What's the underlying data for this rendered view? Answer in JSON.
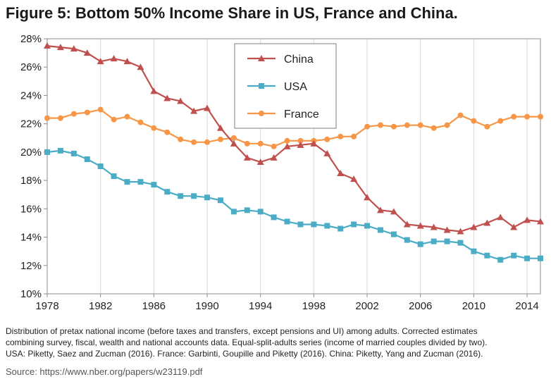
{
  "title": "Figure 5: Bottom 50% Income Share in US, France and China.",
  "notes": [
    "Distribution of pretax national income (before taxes and transfers, except pensions and UI) among adults. Corrected estimates",
    "combining survey, fiscal, wealth and national accounts data. Equal-split-adults series (income of married couples divided by two).",
    "USA: Piketty, Saez and Zucman (2016). France: Garbinti, Goupille and Piketty (2016). China: Piketty, Yang and Zucman (2016)."
  ],
  "source": "Source: https://www.nber.org/papers/w23119.pdf",
  "chart_data": {
    "type": "line",
    "title": "Figure 5: Bottom 50% Income Share in US, France and China.",
    "xlabel": "",
    "ylabel": "",
    "xlim": [
      1978,
      2015
    ],
    "ylim": [
      10,
      28
    ],
    "x_ticks": [
      1978,
      1982,
      1986,
      1990,
      1994,
      1998,
      2002,
      2006,
      2010,
      2014
    ],
    "y_ticks": [
      10,
      12,
      14,
      16,
      18,
      20,
      22,
      24,
      26,
      28
    ],
    "y_tick_labels": [
      "10%",
      "12%",
      "14%",
      "16%",
      "18%",
      "20%",
      "22%",
      "24%",
      "26%",
      "28%"
    ],
    "grid": "vertical",
    "legend_position": "top-center",
    "x": [
      1978,
      1979,
      1980,
      1981,
      1982,
      1983,
      1984,
      1985,
      1986,
      1987,
      1988,
      1989,
      1990,
      1991,
      1992,
      1993,
      1994,
      1995,
      1996,
      1997,
      1998,
      1999,
      2000,
      2001,
      2002,
      2003,
      2004,
      2005,
      2006,
      2007,
      2008,
      2009,
      2010,
      2011,
      2012,
      2013,
      2014,
      2015
    ],
    "series": [
      {
        "name": "China",
        "color": "#c0504d",
        "marker": "triangle",
        "values": [
          27.5,
          27.4,
          27.3,
          27.0,
          26.4,
          26.6,
          26.4,
          26.0,
          24.3,
          23.8,
          23.6,
          22.9,
          23.1,
          21.7,
          20.6,
          19.6,
          19.3,
          19.6,
          20.4,
          20.5,
          20.6,
          19.9,
          18.5,
          18.1,
          16.8,
          15.9,
          15.8,
          14.9,
          14.8,
          14.7,
          14.5,
          14.4,
          14.7,
          15.0,
          15.4,
          14.7,
          15.2,
          15.1
        ]
      },
      {
        "name": "USA",
        "color": "#4bacc6",
        "marker": "square",
        "values": [
          20.0,
          20.1,
          19.9,
          19.5,
          19.0,
          18.3,
          17.9,
          17.9,
          17.7,
          17.2,
          16.9,
          16.9,
          16.8,
          16.6,
          15.8,
          15.9,
          15.8,
          15.4,
          15.1,
          14.9,
          14.9,
          14.8,
          14.6,
          14.9,
          14.8,
          14.5,
          14.2,
          13.8,
          13.5,
          13.7,
          13.7,
          13.6,
          13.0,
          12.7,
          12.4,
          12.7,
          12.5,
          12.5
        ]
      },
      {
        "name": "France",
        "color": "#f79646",
        "marker": "circle",
        "values": [
          22.4,
          22.4,
          22.7,
          22.8,
          23.0,
          22.3,
          22.5,
          22.1,
          21.7,
          21.4,
          20.9,
          20.7,
          20.7,
          20.9,
          21.0,
          20.6,
          20.6,
          20.4,
          20.8,
          20.8,
          20.8,
          20.9,
          21.1,
          21.1,
          21.8,
          21.9,
          21.8,
          21.9,
          21.9,
          21.7,
          21.9,
          22.6,
          22.2,
          21.8,
          22.2,
          22.5,
          22.5,
          22.5
        ]
      }
    ]
  }
}
